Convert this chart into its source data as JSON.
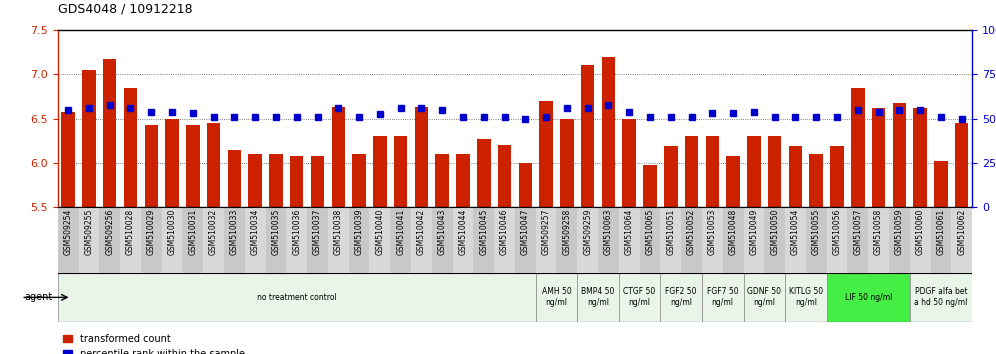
{
  "title": "GDS4048 / 10912218",
  "samples": [
    "GSM509254",
    "GSM509255",
    "GSM509256",
    "GSM510028",
    "GSM510029",
    "GSM510030",
    "GSM510031",
    "GSM510032",
    "GSM510033",
    "GSM510034",
    "GSM510035",
    "GSM510036",
    "GSM510037",
    "GSM510038",
    "GSM510039",
    "GSM510040",
    "GSM510041",
    "GSM510042",
    "GSM510043",
    "GSM510044",
    "GSM510045",
    "GSM510046",
    "GSM510047",
    "GSM509257",
    "GSM509258",
    "GSM509259",
    "GSM510063",
    "GSM510064",
    "GSM510065",
    "GSM510051",
    "GSM510052",
    "GSM510053",
    "GSM510048",
    "GSM510049",
    "GSM510050",
    "GSM510054",
    "GSM510055",
    "GSM510056",
    "GSM510057",
    "GSM510058",
    "GSM510059",
    "GSM510060",
    "GSM510061",
    "GSM510062"
  ],
  "red_values": [
    6.58,
    7.05,
    7.17,
    6.84,
    6.43,
    6.5,
    6.43,
    6.45,
    6.15,
    6.1,
    6.1,
    6.08,
    6.08,
    6.63,
    6.1,
    6.3,
    6.3,
    6.63,
    6.1,
    6.1,
    6.27,
    6.2,
    6.0,
    6.7,
    6.5,
    7.1,
    7.2,
    6.5,
    5.97,
    6.19,
    6.3,
    6.3,
    6.08,
    6.3,
    6.3,
    6.19,
    6.1,
    6.19,
    6.85,
    6.62,
    6.68,
    6.62,
    6.02,
    6.45
  ],
  "blue_values": [
    6.6,
    6.62,
    6.65,
    6.62,
    6.57,
    6.57,
    6.56,
    6.52,
    6.52,
    6.52,
    6.52,
    6.52,
    6.52,
    6.62,
    6.52,
    6.55,
    6.62,
    6.62,
    6.6,
    6.52,
    6.52,
    6.52,
    6.49,
    6.52,
    6.62,
    6.62,
    6.65,
    6.58,
    6.52,
    6.52,
    6.52,
    6.56,
    6.56,
    6.58,
    6.52,
    6.52,
    6.52,
    6.52,
    6.6,
    6.58,
    6.6,
    6.6,
    6.52,
    6.49
  ],
  "ylim_left": [
    5.5,
    7.5
  ],
  "ylim_right": [
    0,
    100
  ],
  "yticks_left": [
    5.5,
    6.0,
    6.5,
    7.0,
    7.5
  ],
  "yticks_right": [
    0,
    25,
    50,
    75,
    100
  ],
  "bar_color": "#CC2200",
  "dot_color": "#0000CC",
  "agent_groups": [
    {
      "label": "no treatment control",
      "start": 0,
      "end": 23,
      "color": "#e8f5e8",
      "bright": false
    },
    {
      "label": "AMH 50\nng/ml",
      "start": 23,
      "end": 25,
      "color": "#e8f5e8",
      "bright": false
    },
    {
      "label": "BMP4 50\nng/ml",
      "start": 25,
      "end": 27,
      "color": "#e8f5e8",
      "bright": false
    },
    {
      "label": "CTGF 50\nng/ml",
      "start": 27,
      "end": 29,
      "color": "#e8f5e8",
      "bright": false
    },
    {
      "label": "FGF2 50\nng/ml",
      "start": 29,
      "end": 31,
      "color": "#e8f5e8",
      "bright": false
    },
    {
      "label": "FGF7 50\nng/ml",
      "start": 31,
      "end": 33,
      "color": "#e8f5e8",
      "bright": false
    },
    {
      "label": "GDNF 50\nng/ml",
      "start": 33,
      "end": 35,
      "color": "#e8f5e8",
      "bright": false
    },
    {
      "label": "KITLG 50\nng/ml",
      "start": 35,
      "end": 37,
      "color": "#e8f5e8",
      "bright": false
    },
    {
      "label": "LIF 50 ng/ml",
      "start": 37,
      "end": 41,
      "color": "#44ee44",
      "bright": true
    },
    {
      "label": "PDGF alfa bet\na hd 50 ng/ml",
      "start": 41,
      "end": 44,
      "color": "#e8f5e8",
      "bright": false
    }
  ],
  "grid_color": "#888888",
  "bg_color": "#ffffff",
  "tick_label_color_left": "#CC2200",
  "tick_label_color_right": "#0000CC",
  "sample_bg_color": "#d0d0d0",
  "fig_width": 9.96,
  "fig_height": 3.54,
  "fig_dpi": 100
}
